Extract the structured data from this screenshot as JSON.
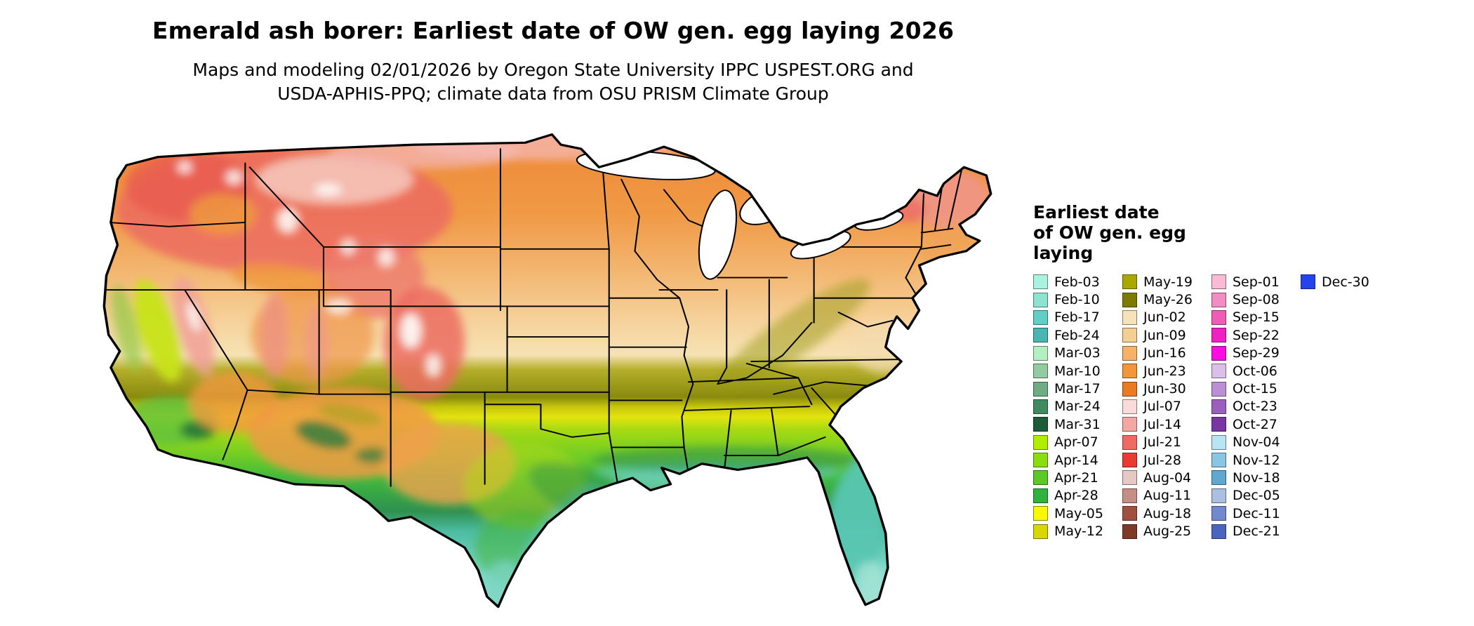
{
  "header": {
    "title": "Emerald ash borer: Earliest date of OW gen. egg laying 2026",
    "subtitle_line1": "Maps and modeling 02/01/2026 by Oregon State University IPPC USPEST.ORG and",
    "subtitle_line2": "USDA-APHIS-PPQ; climate data from OSU PRISM Climate Group"
  },
  "legend": {
    "title_lines": [
      "Earliest date",
      "of OW gen. egg",
      "laying"
    ],
    "columns": [
      [
        {
          "label": "Feb-03",
          "color": "#aaf2e0"
        },
        {
          "label": "Feb-10",
          "color": "#8ce4d0"
        },
        {
          "label": "Feb-17",
          "color": "#62cfc6"
        },
        {
          "label": "Feb-24",
          "color": "#49b6b2"
        },
        {
          "label": "Mar-03",
          "color": "#b5efc1"
        },
        {
          "label": "Mar-10",
          "color": "#93cba1"
        },
        {
          "label": "Mar-17",
          "color": "#6ead84"
        },
        {
          "label": "Mar-24",
          "color": "#3f8a5e"
        },
        {
          "label": "Mar-31",
          "color": "#1d5c39"
        },
        {
          "label": "Apr-07",
          "color": "#b0ee00"
        },
        {
          "label": "Apr-14",
          "color": "#8ade0e"
        },
        {
          "label": "Apr-21",
          "color": "#5bc928"
        },
        {
          "label": "Apr-28",
          "color": "#2eb33c"
        },
        {
          "label": "May-05",
          "color": "#f8f800"
        },
        {
          "label": "May-12",
          "color": "#d8d800"
        }
      ],
      [
        {
          "label": "May-19",
          "color": "#aaa800"
        },
        {
          "label": "May-26",
          "color": "#7e7c00"
        },
        {
          "label": "Jun-02",
          "color": "#f8e2b8"
        },
        {
          "label": "Jun-09",
          "color": "#f4cf94"
        },
        {
          "label": "Jun-16",
          "color": "#f6b269"
        },
        {
          "label": "Jun-23",
          "color": "#f29739"
        },
        {
          "label": "Jun-30",
          "color": "#eb7a23"
        },
        {
          "label": "Jul-07",
          "color": "#f9dcd9"
        },
        {
          "label": "Jul-14",
          "color": "#f4a7a3"
        },
        {
          "label": "Jul-21",
          "color": "#f06a64"
        },
        {
          "label": "Jul-28",
          "color": "#e93b31"
        },
        {
          "label": "Aug-04",
          "color": "#e6c9c5"
        },
        {
          "label": "Aug-11",
          "color": "#c68f86"
        },
        {
          "label": "Aug-18",
          "color": "#a2503d"
        },
        {
          "label": "Aug-25",
          "color": "#7c3a27"
        }
      ],
      [
        {
          "label": "Sep-01",
          "color": "#f9bad6"
        },
        {
          "label": "Sep-08",
          "color": "#f38cc5"
        },
        {
          "label": "Sep-15",
          "color": "#ef5cb8"
        },
        {
          "label": "Sep-22",
          "color": "#ee22c4"
        },
        {
          "label": "Sep-29",
          "color": "#fb0ce0"
        },
        {
          "label": "Oct-06",
          "color": "#dcbfe8"
        },
        {
          "label": "Oct-15",
          "color": "#bc8ed5"
        },
        {
          "label": "Oct-23",
          "color": "#9c5fbc"
        },
        {
          "label": "Oct-27",
          "color": "#7936a2"
        },
        {
          "label": "Nov-04",
          "color": "#b8e4f3"
        },
        {
          "label": "Nov-12",
          "color": "#89c6e5"
        },
        {
          "label": "Nov-18",
          "color": "#61a8d1"
        },
        {
          "label": "Dec-05",
          "color": "#abc0e0"
        },
        {
          "label": "Dec-11",
          "color": "#7389cf"
        },
        {
          "label": "Dec-21",
          "color": "#4b64bd"
        }
      ],
      [
        {
          "label": "Dec-30",
          "color": "#2543ea"
        }
      ]
    ]
  }
}
